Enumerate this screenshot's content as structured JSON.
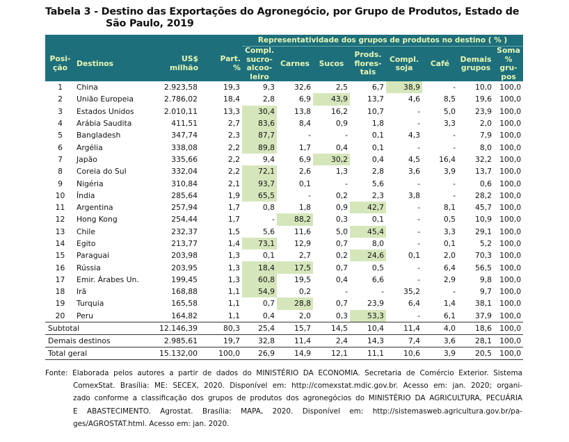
{
  "title": [
    "Tabela 3 - Destino das Exportações do Agronegócio, por Grupo  de Produtos, Estado de",
    "São Paulo, 2019"
  ],
  "table": {
    "group_header": "Representatividade dos grupos de produtos no destino ( % )",
    "columns": [
      [
        "Posi-",
        "ção"
      ],
      [
        "Destinos"
      ],
      [
        "US$",
        "milhão"
      ],
      [
        "Part.",
        "%"
      ],
      [
        "Compl.",
        "sucro-",
        "alcoo-",
        "leiro"
      ],
      [
        "Carnes"
      ],
      [
        "Sucos"
      ],
      [
        "Prods.",
        "flores-",
        "tais"
      ],
      [
        "Compl.",
        "soja"
      ],
      [
        "Café"
      ],
      [
        "Demais",
        "grupos"
      ],
      [
        "Soma",
        "%",
        "gru-",
        "pos"
      ]
    ],
    "rows": [
      {
        "cells": [
          "1",
          "China",
          "2.923,58",
          "19,3",
          "9,3",
          "32,6",
          "2,5",
          "6,7",
          "38,9",
          "-",
          "10,0",
          "100,0"
        ],
        "highlight": [
          8
        ]
      },
      {
        "cells": [
          "2",
          "União Europeia",
          "2.786,02",
          "18,4",
          "2,8",
          "6,9",
          "43,9",
          "13,7",
          "4,6",
          "8,5",
          "19,6",
          "100,0"
        ],
        "highlight": [
          6
        ]
      },
      {
        "cells": [
          "3",
          "Estados Unidos",
          "2.010,11",
          "13,3",
          "30,4",
          "13,8",
          "16,2",
          "10,7",
          "-",
          "5,0",
          "23,9",
          "100,0"
        ],
        "highlight": [
          4
        ]
      },
      {
        "cells": [
          "4",
          "Arábia Saudita",
          "411,51",
          "2,7",
          "83,6",
          "8,4",
          "0,9",
          "1,8",
          "-",
          "3,3",
          "2,0",
          "100,0"
        ],
        "highlight": [
          4
        ]
      },
      {
        "cells": [
          "5",
          "Bangladesh",
          "347,74",
          "2,3",
          "87,7",
          "-",
          "-",
          "0,1",
          "4,3",
          "-",
          "7,9",
          "100,0"
        ],
        "highlight": [
          4
        ]
      },
      {
        "cells": [
          "6",
          "Argélia",
          "338,08",
          "2,2",
          "89,8",
          "1,7",
          "0,4",
          "0,1",
          "-",
          "-",
          "8,0",
          "100,0"
        ],
        "highlight": [
          4
        ]
      },
      {
        "cells": [
          "7",
          "Japão",
          "335,66",
          "2,2",
          "9,4",
          "6,9",
          "30,2",
          "0,4",
          "4,5",
          "16,4",
          "32,2",
          "100,0"
        ],
        "highlight": [
          6
        ]
      },
      {
        "cells": [
          "8",
          "Coreia do Sul",
          "332,04",
          "2,2",
          "72,1",
          "2,6",
          "1,3",
          "2,8",
          "3,6",
          "3,9",
          "13,7",
          "100,0"
        ],
        "highlight": [
          4
        ]
      },
      {
        "cells": [
          "9",
          "Nigéria",
          "310,84",
          "2,1",
          "93,7",
          "0,1",
          "-",
          "5,6",
          "-",
          "-",
          "0,6",
          "100,0"
        ],
        "highlight": [
          4
        ]
      },
      {
        "cells": [
          "10",
          "Índia",
          "285,64",
          "1,9",
          "65,5",
          "-",
          "0,2",
          "2,3",
          "3,8",
          "-",
          "28,2",
          "100,0"
        ],
        "highlight": [
          4
        ]
      },
      {
        "cells": [
          "11",
          "Argentina",
          "257,94",
          "1,7",
          "0,8",
          "1,8",
          "0,9",
          "42,7",
          "-",
          "8,1",
          "45,7",
          "100,0"
        ],
        "highlight": [
          7
        ]
      },
      {
        "cells": [
          "12",
          "Hong Kong",
          "254,44",
          "1,7",
          "-",
          "88,2",
          "0,3",
          "0,1",
          "-",
          "0,5",
          "10,9",
          "100,0"
        ],
        "highlight": [
          5
        ]
      },
      {
        "cells": [
          "13",
          "Chile",
          "232,37",
          "1,5",
          "5,6",
          "11,6",
          "5,0",
          "45,4",
          "-",
          "3,3",
          "29,1",
          "100,0"
        ],
        "highlight": [
          7
        ]
      },
      {
        "cells": [
          "14",
          "Egito",
          "213,77",
          "1,4",
          "73,1",
          "12,9",
          "0,7",
          "8,0",
          "-",
          "0,1",
          "5,2",
          "100,0"
        ],
        "highlight": [
          4
        ]
      },
      {
        "cells": [
          "15",
          "Paraguai",
          "203,98",
          "1,3",
          "0,1",
          "2,7",
          "0,2",
          "24,6",
          "0,1",
          "2,0",
          "70,3",
          "100,0"
        ],
        "highlight": [
          7
        ]
      },
      {
        "cells": [
          "16",
          "Rússia",
          "203,95",
          "1,3",
          "18,4",
          "17,5",
          "0,7",
          "0,5",
          "-",
          "6,4",
          "56,5",
          "100,0"
        ],
        "highlight": [
          4,
          5
        ]
      },
      {
        "cells": [
          "17",
          "Emir. Árabes Un.",
          "199,45",
          "1,3",
          "60,8",
          "19,5",
          "0,4",
          "6,6",
          "-",
          "2,9",
          "9,8",
          "100,0"
        ],
        "highlight": [
          4
        ]
      },
      {
        "cells": [
          "18",
          "Irã",
          "168,88",
          "1,1",
          "54,9",
          "0,2",
          "-",
          "-",
          "35,2",
          "-",
          "9,7",
          "100,0"
        ],
        "highlight": [
          4
        ]
      },
      {
        "cells": [
          "19",
          "Turquia",
          "165,58",
          "1,1",
          "0,7",
          "28,8",
          "0,7",
          "23,9",
          "6,4",
          "1,4",
          "38,1",
          "100,0"
        ],
        "highlight": [
          5
        ]
      },
      {
        "cells": [
          "20",
          "Peru",
          "164,82",
          "1,1",
          "0,4",
          "2,0",
          "0,3",
          "53,3",
          "-",
          "6,1",
          "37,9",
          "100,0"
        ],
        "highlight": [
          7
        ]
      }
    ],
    "totals": [
      [
        "Subtotal",
        "12.146,39",
        "80,3",
        "25,4",
        "15,7",
        "14,5",
        "10,4",
        "11,4",
        "4,0",
        "18,6",
        "100,0"
      ],
      [
        "Demais destinos",
        "2.985,61",
        "19,7",
        "32,8",
        "11,4",
        "2,4",
        "14,3",
        "7,4",
        "3,6",
        "28,1",
        "100,0"
      ],
      [
        "Total geral",
        "15.132,00",
        "100,0",
        "26,9",
        "14,9",
        "12,1",
        "11,1",
        "10,6",
        "3,9",
        "20,5",
        "100,0"
      ]
    ]
  },
  "source": [
    "Fonte: Elaborada pelos autores a partir de dados do MINISTÉRIO DA ECONOMIA. Secretaria de Comércio Exterior. Sistema",
    "ComexStat. Brasília: ME: SECEX, 2020. Disponível em: http://comexstat.mdic.gov.br. Acesso em: jan. 2020; organi-",
    "zado conforme a classificação dos grupos de produtos dos agronegócios do MINISTÉRIO DA AGRICULTURA, PECUÁRIA",
    "E ABASTECIMENTO. Agrostat. Brasília: MAPA, 2020. Disponível em: http://sistemasweb.agricultura.gov.br/pa-",
    "ges/AGROSTAT.html. Acesso em: jan. 2020."
  ]
}
